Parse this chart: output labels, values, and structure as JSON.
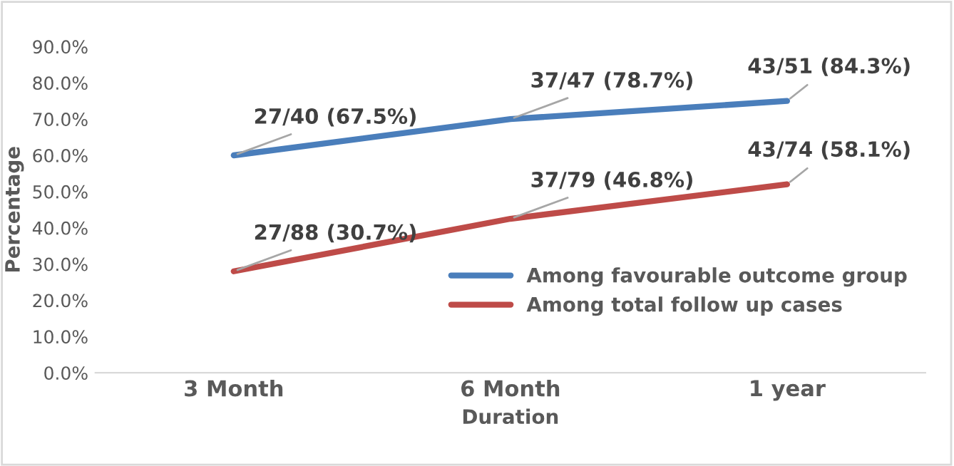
{
  "chart_data": {
    "type": "line",
    "xlabel": "Duration",
    "ylabel": "Percentage",
    "categories": [
      "3 Month",
      "6 Month",
      "1 year"
    ],
    "series": [
      {
        "name": "Among favourable outcome group",
        "color": "#4a7ebb",
        "values": [
          60,
          70,
          75
        ]
      },
      {
        "name": "Among total follow up cases",
        "color": "#be4b48",
        "values": [
          28,
          42.5,
          52
        ]
      }
    ],
    "ylim": [
      0,
      90
    ],
    "yticks": [
      {
        "value": 0,
        "label": "0.0%"
      },
      {
        "value": 10,
        "label": "10.0%"
      },
      {
        "value": 20,
        "label": "20.0%"
      },
      {
        "value": 30,
        "label": "30.0%"
      },
      {
        "value": 40,
        "label": "40.0%"
      },
      {
        "value": 50,
        "label": "50.0%"
      },
      {
        "value": 60,
        "label": "60.0%"
      },
      {
        "value": 70,
        "label": "70.0%"
      },
      {
        "value": 80,
        "label": "80.0%"
      },
      {
        "value": 90,
        "label": "90.0%"
      }
    ],
    "annotations": [
      {
        "text": "27/40 (67.5%)",
        "x": "3 Month",
        "y": 60
      },
      {
        "text": "37/47 (78.7%)",
        "x": "6 Month",
        "y": 70
      },
      {
        "text": "43/51 (84.3%)",
        "x": "1 year",
        "y": 75
      },
      {
        "text": "27/88 (30.7%)",
        "x": "3 Month",
        "y": 28
      },
      {
        "text": "37/79 (46.8%)",
        "x": "6 Month",
        "y": 42.5
      },
      {
        "text": "43/74 (58.1%)",
        "x": "1 year",
        "y": 52
      }
    ],
    "grid": false,
    "legend": "bottom right",
    "marker": "none",
    "line_style": "solid"
  }
}
